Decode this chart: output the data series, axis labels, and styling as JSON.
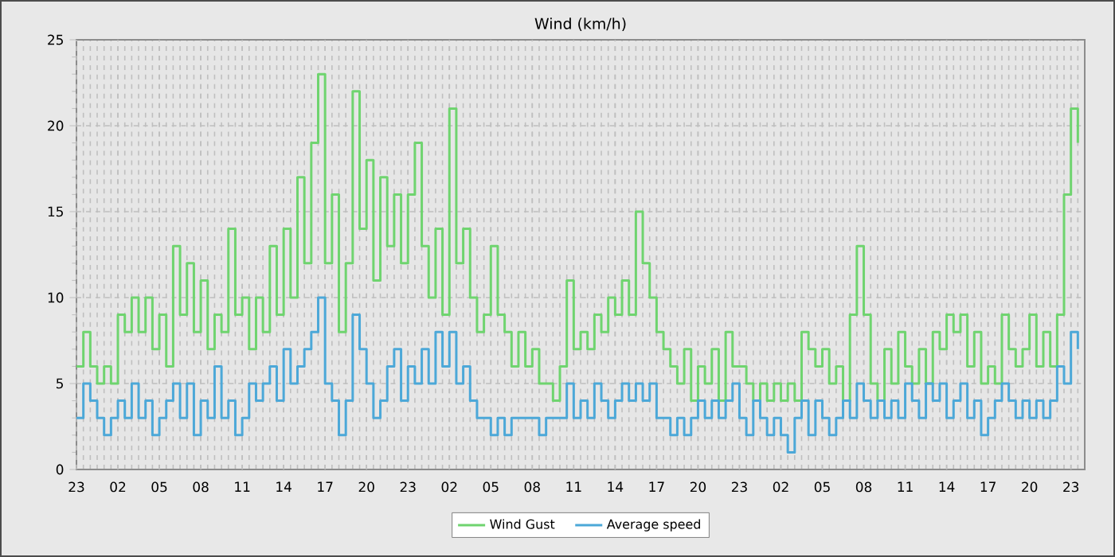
{
  "chart_data": {
    "type": "step",
    "title": "Wind (km/h)",
    "ylim": [
      0,
      25
    ],
    "categories": [
      "23",
      null,
      null,
      null,
      null,
      null,
      "02",
      null,
      null,
      null,
      null,
      null,
      "05",
      null,
      null,
      null,
      null,
      null,
      "08",
      null,
      null,
      null,
      null,
      null,
      "11",
      null,
      null,
      null,
      null,
      null,
      "14",
      null,
      null,
      null,
      null,
      null,
      "17",
      null,
      null,
      null,
      null,
      null,
      "20",
      null,
      null,
      null,
      null,
      null,
      "23",
      null,
      null,
      null,
      null,
      null,
      "02",
      null,
      null,
      null,
      null,
      null,
      "05",
      null,
      null,
      null,
      null,
      null,
      "08",
      null,
      null,
      null,
      null,
      null,
      "11",
      null,
      null,
      null,
      null,
      null,
      "14",
      null,
      null,
      null,
      null,
      null,
      "17",
      null,
      null,
      null,
      null,
      null,
      "20",
      null,
      null,
      null,
      null,
      null,
      "23",
      null,
      null,
      null,
      null,
      null,
      "02",
      null,
      null,
      null,
      null,
      null,
      "05",
      null,
      null,
      null,
      null,
      null,
      "08",
      null,
      null,
      null,
      null,
      null,
      "11",
      null,
      null,
      null,
      null,
      null,
      "14",
      null,
      null,
      null,
      null,
      null,
      "17",
      null,
      null,
      null,
      null,
      null,
      "20",
      null,
      null,
      null,
      null,
      null,
      "23",
      null
    ],
    "yticks": [
      0,
      5,
      10,
      15,
      20,
      25
    ],
    "grid": true,
    "legend": "bottom",
    "series": [
      {
        "name": "Wind Gust",
        "color": "#6fd46f",
        "values": [
          6,
          8,
          6,
          5,
          6,
          5,
          9,
          8,
          10,
          8,
          10,
          7,
          9,
          6,
          13,
          9,
          12,
          8,
          11,
          7,
          9,
          8,
          14,
          9,
          10,
          7,
          10,
          8,
          13,
          9,
          14,
          10,
          17,
          12,
          19,
          23,
          12,
          16,
          8,
          12,
          22,
          14,
          18,
          11,
          17,
          13,
          16,
          12,
          16,
          19,
          13,
          10,
          14,
          9,
          21,
          12,
          14,
          10,
          8,
          9,
          13,
          9,
          8,
          6,
          8,
          6,
          7,
          5,
          5,
          4,
          6,
          11,
          7,
          8,
          7,
          9,
          8,
          10,
          9,
          11,
          9,
          15,
          12,
          10,
          8,
          7,
          6,
          5,
          7,
          4,
          6,
          5,
          7,
          4,
          8,
          6,
          6,
          5,
          4,
          5,
          4,
          5,
          4,
          5,
          4,
          8,
          7,
          6,
          7,
          5,
          6,
          4,
          9,
          13,
          9,
          5,
          4,
          7,
          5,
          8,
          6,
          5,
          7,
          5,
          8,
          7,
          9,
          8,
          9,
          6,
          8,
          5,
          6,
          5,
          9,
          7,
          6,
          7,
          9,
          6,
          8,
          6,
          9,
          16,
          21,
          19
        ]
      },
      {
        "name": "Average speed",
        "color": "#4ca8d8",
        "values": [
          3,
          5,
          4,
          3,
          2,
          3,
          4,
          3,
          5,
          3,
          4,
          2,
          3,
          4,
          5,
          3,
          5,
          2,
          4,
          3,
          6,
          3,
          4,
          2,
          3,
          5,
          4,
          5,
          6,
          4,
          7,
          5,
          6,
          7,
          8,
          10,
          5,
          4,
          2,
          4,
          9,
          7,
          5,
          3,
          4,
          6,
          7,
          4,
          6,
          5,
          7,
          5,
          8,
          6,
          8,
          5,
          6,
          4,
          3,
          3,
          2,
          3,
          2,
          3,
          3,
          3,
          3,
          2,
          3,
          3,
          3,
          5,
          3,
          4,
          3,
          5,
          4,
          3,
          4,
          5,
          4,
          5,
          4,
          5,
          3,
          3,
          2,
          3,
          2,
          3,
          4,
          3,
          4,
          3,
          4,
          5,
          3,
          2,
          4,
          3,
          2,
          3,
          2,
          1,
          3,
          4,
          2,
          4,
          3,
          2,
          3,
          4,
          3,
          5,
          4,
          3,
          4,
          3,
          4,
          3,
          5,
          4,
          3,
          5,
          4,
          5,
          3,
          4,
          5,
          3,
          4,
          2,
          3,
          4,
          5,
          4,
          3,
          4,
          3,
          4,
          3,
          4,
          6,
          5,
          8,
          7
        ]
      }
    ]
  }
}
